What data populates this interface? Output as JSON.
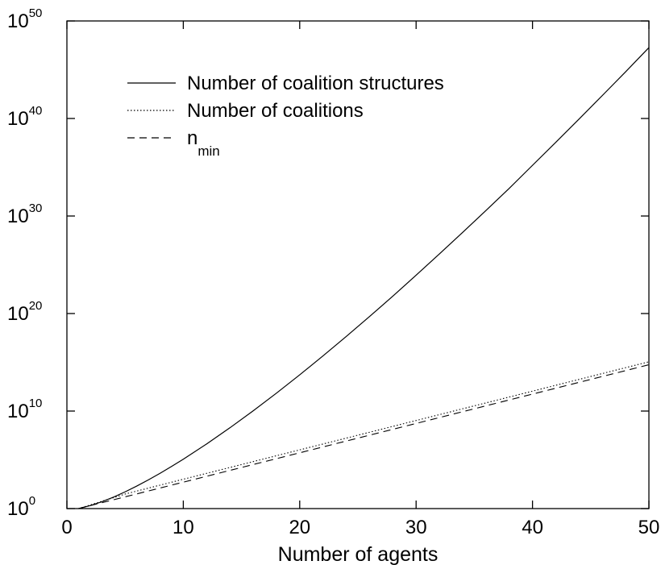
{
  "chart_data": {
    "type": "line",
    "title": "",
    "xlabel": "Number of agents",
    "ylabel": "",
    "xlim": [
      0,
      50
    ],
    "ylim_exponent": [
      0,
      50
    ],
    "y_scale": "log10",
    "x_ticks": [
      "0",
      "10",
      "20",
      "30",
      "40",
      "50"
    ],
    "y_ticks": [
      {
        "base": "10",
        "exp": "0"
      },
      {
        "base": "10",
        "exp": "10"
      },
      {
        "base": "10",
        "exp": "20"
      },
      {
        "base": "10",
        "exp": "30"
      },
      {
        "base": "10",
        "exp": "40"
      },
      {
        "base": "10",
        "exp": "50"
      }
    ],
    "grid": false,
    "legend_position": "top-left",
    "legend": [
      {
        "text": "Number of coalition structures",
        "style": "solid"
      },
      {
        "text": "Number of coalitions",
        "style": "dotted"
      },
      {
        "main": "n",
        "sub": "min",
        "style": "dashed"
      }
    ],
    "series": [
      {
        "style": "solid",
        "x": [
          1,
          2,
          3,
          4,
          5,
          6,
          7,
          8,
          9,
          10,
          12,
          14,
          16,
          18,
          20,
          22,
          24,
          26,
          28,
          30,
          32,
          34,
          36,
          38,
          40,
          42,
          44,
          46,
          48,
          50
        ],
        "y": [
          1,
          2,
          5,
          15,
          52,
          203,
          877,
          4140,
          21147,
          115975,
          4210000.0,
          191000000.0,
          10500000000.0,
          682000000000.0,
          51700000000000.0,
          4510000000000000.0,
          4.45e+17,
          4.92e+19,
          6.02e+21,
          8.47e+23,
          1.28e+26,
          2.09e+28,
          3.66e+30,
          6.85e+32,
          1.57e+35,
          3.61e+37,
          8.81e+39,
          2.27e+42,
          6.13e+44,
          1.86e+47
        ]
      },
      {
        "style": "dotted",
        "x": [
          1,
          5,
          10,
          15,
          20,
          25,
          30,
          35,
          40,
          45,
          50
        ],
        "y": [
          1,
          31,
          1023,
          32767,
          1048575,
          33600000.0,
          1070000000.0,
          34400000000.0,
          1100000000000.0,
          35200000000000.0,
          1130000000000000.0
        ]
      },
      {
        "style": "dashed",
        "x": [
          1,
          5,
          10,
          15,
          20,
          25,
          30,
          35,
          40,
          45,
          50
        ],
        "y": [
          1,
          16,
          512,
          16384,
          524288,
          16800000.0,
          537000000.0,
          17200000000.0,
          550000000000.0,
          17600000000000.0,
          563000000000000.0
        ]
      }
    ]
  }
}
